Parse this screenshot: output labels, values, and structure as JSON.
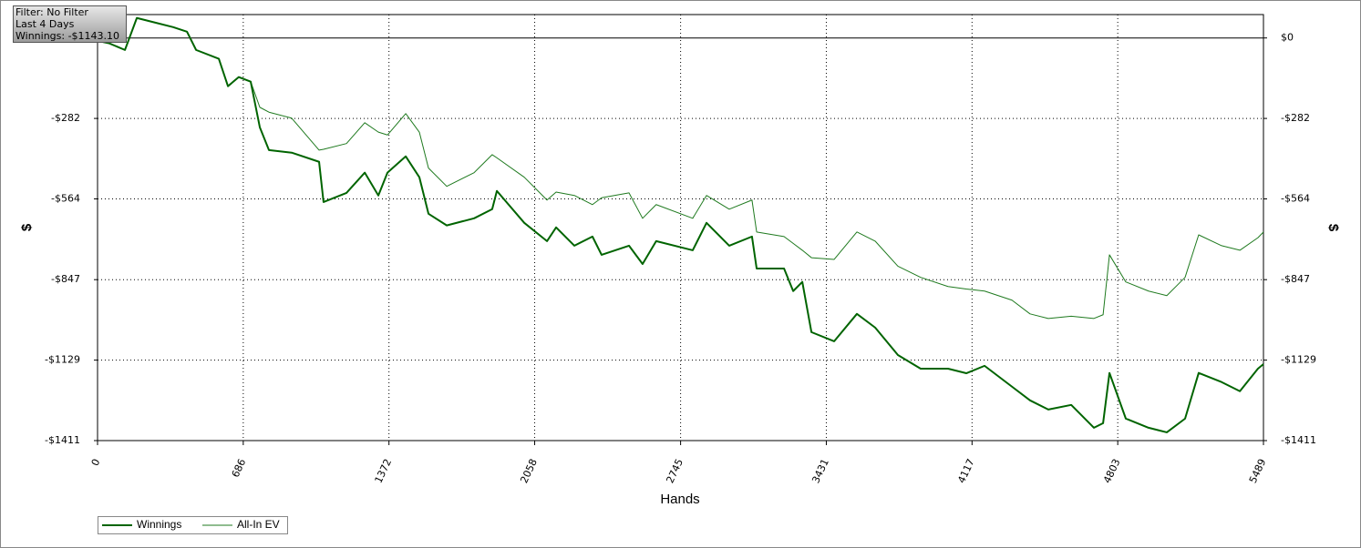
{
  "chart_data": {
    "type": "line",
    "info": [
      "Filter: No Filter",
      "Last 4 Days",
      "Winnings: -$1143.10"
    ],
    "x_label": "Hands",
    "y_label": "$",
    "x": [
      0,
      56,
      129,
      185,
      270,
      356,
      421,
      464,
      571,
      614,
      665,
      721,
      764,
      807,
      914,
      1043,
      1064,
      1172,
      1258,
      1322,
      1365,
      1451,
      1515,
      1558,
      1644,
      1773,
      1858,
      1880,
      2009,
      2116,
      2159,
      2245,
      2330,
      2373,
      2502,
      2566,
      2630,
      2802,
      2867,
      2974,
      3081,
      3103,
      3232,
      3275,
      3318,
      3361,
      3468,
      3575,
      3661,
      3768,
      3875,
      4004,
      4090,
      4176,
      4305,
      4390,
      4476,
      4584,
      4691,
      4734,
      4764,
      4841,
      4948,
      5034,
      5120,
      5184,
      5292,
      5378,
      5463,
      5489
    ],
    "series": [
      {
        "name": "Winnings",
        "color": "#006400",
        "values": [
          -10,
          -19,
          -42,
          70,
          54,
          38,
          22,
          -42,
          -73,
          -169,
          -137,
          -153,
          -313,
          -393,
          -402,
          -434,
          -575,
          -543,
          -472,
          -552,
          -472,
          -415,
          -488,
          -616,
          -657,
          -632,
          -600,
          -536,
          -648,
          -712,
          -664,
          -728,
          -696,
          -760,
          -728,
          -792,
          -712,
          -744,
          -648,
          -728,
          -696,
          -808,
          -808,
          -887,
          -855,
          -1031,
          -1063,
          -967,
          -1015,
          -1111,
          -1159,
          -1159,
          -1175,
          -1149,
          -1222,
          -1270,
          -1302,
          -1286,
          -1366,
          -1350,
          -1174,
          -1334,
          -1366,
          -1382,
          -1334,
          -1174,
          -1206,
          -1238,
          -1159,
          -1143.1
        ]
      },
      {
        "name": "All-In EV",
        "color": "#1f7a1f",
        "values": [
          -10,
          -19,
          -42,
          70,
          54,
          38,
          22,
          -42,
          -73,
          -169,
          -137,
          -153,
          -243,
          -260,
          -281,
          -393,
          -390,
          -370,
          -297,
          -330,
          -340,
          -265,
          -330,
          -456,
          -520,
          -472,
          -409,
          -420,
          -488,
          -568,
          -540,
          -552,
          -584,
          -560,
          -543,
          -632,
          -584,
          -632,
          -552,
          -600,
          -568,
          -680,
          -696,
          -720,
          -744,
          -770,
          -776,
          -680,
          -712,
          -800,
          -839,
          -871,
          -880,
          -887,
          -919,
          -967,
          -983,
          -975,
          -983,
          -970,
          -760,
          -855,
          -887,
          -903,
          -839,
          -690,
          -728,
          -744,
          -700,
          -680
        ]
      }
    ],
    "xlim": [
      0,
      5489
    ],
    "ylim": [
      -1411,
      82
    ],
    "xticks": [
      0,
      686,
      1372,
      2058,
      2745,
      3431,
      4117,
      4803,
      5489
    ],
    "yticks": [
      {
        "value": 0,
        "label": "$0"
      },
      {
        "value": -282,
        "label": "-$282"
      },
      {
        "value": -564,
        "label": "-$564"
      },
      {
        "value": -847,
        "label": "-$847"
      },
      {
        "value": -1129,
        "label": "-$1129"
      },
      {
        "value": -1411,
        "label": "-$1411"
      }
    ],
    "grid": true,
    "legend": "bottom-left"
  }
}
